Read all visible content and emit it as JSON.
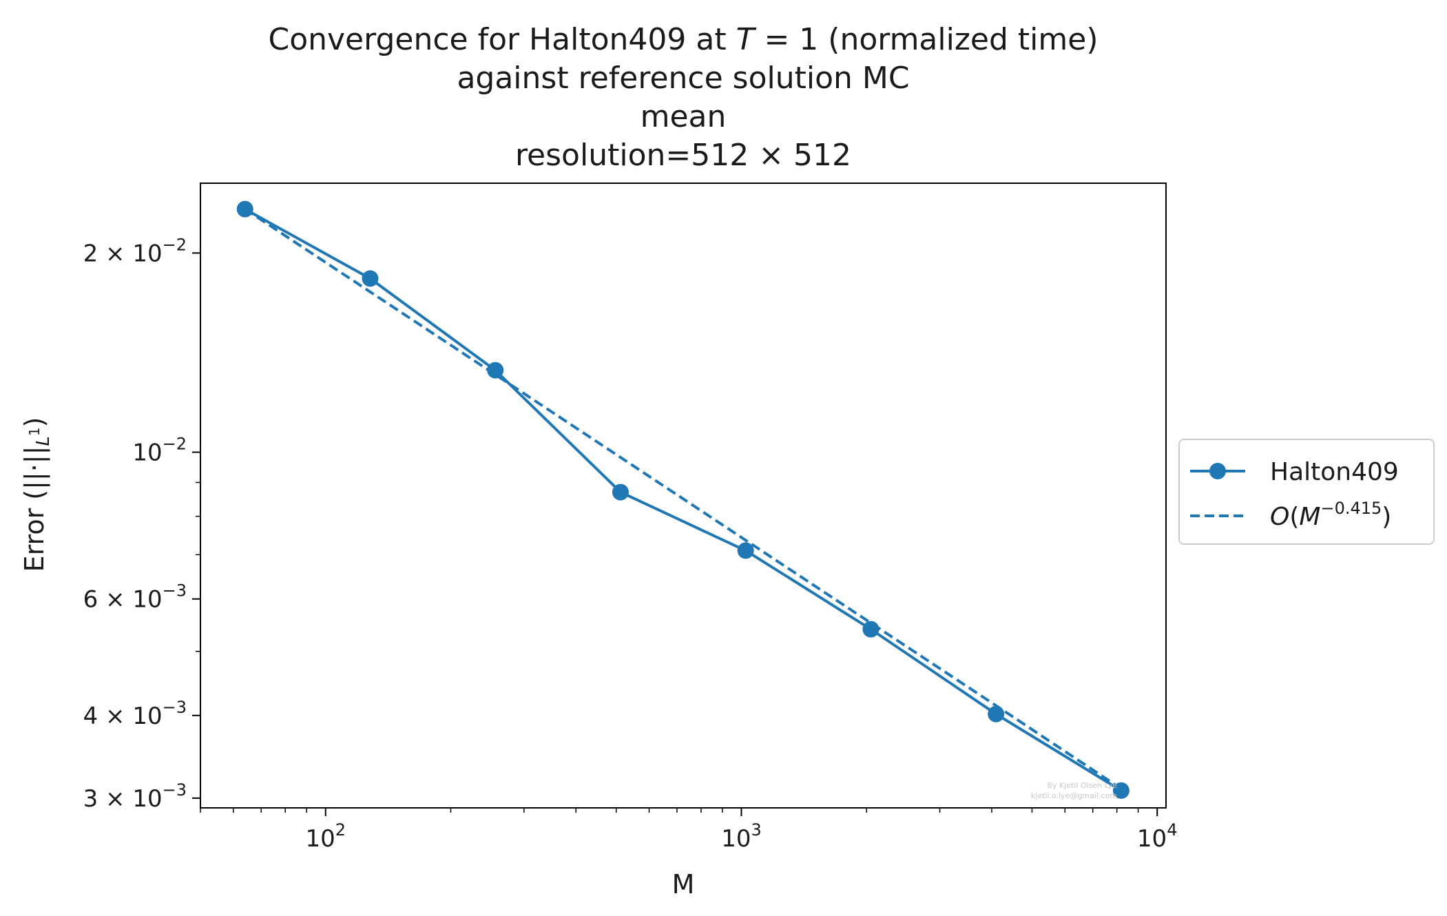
{
  "chart_data": {
    "type": "line",
    "title_lines": [
      "Convergence for Halton409 at T = 1 (normalized time)",
      "against reference solution MC",
      "mean",
      "resolution=512 × 512"
    ],
    "xlabel": "M",
    "ylabel": "Error (||·||L¹)",
    "xscale": "log",
    "yscale": "log",
    "xlim": [
      50,
      10500
    ],
    "ylim": [
      0.0029,
      0.0255
    ],
    "xticks": [
      {
        "value": 100,
        "base": "10",
        "exp": "2"
      },
      {
        "value": 1000,
        "base": "10",
        "exp": "3"
      },
      {
        "value": 10000,
        "base": "10",
        "exp": "4"
      }
    ],
    "yticks": [
      {
        "value": 0.003,
        "mant": "3 × 10",
        "exp": "−3"
      },
      {
        "value": 0.004,
        "mant": "4 × 10",
        "exp": "−3"
      },
      {
        "value": 0.006,
        "mant": "6 × 10",
        "exp": "−3"
      },
      {
        "value": 0.01,
        "mant": "10",
        "exp": "−2"
      },
      {
        "value": 0.02,
        "mant": "2 × 10",
        "exp": "−2"
      }
    ],
    "grid": false,
    "legend_position": "outside-right",
    "series": [
      {
        "name": "Halton409",
        "style": "solid-marker",
        "color": "#1f77b4",
        "x": [
          64,
          128,
          256,
          512,
          1024,
          2048,
          4096,
          8192
        ],
        "y": [
          0.0233,
          0.0183,
          0.0133,
          0.0087,
          0.0071,
          0.0054,
          0.00402,
          0.00308
        ]
      },
      {
        "name": "O(M^−0.415)",
        "style": "dashed",
        "color": "#1f77b4",
        "x": [
          64,
          128,
          256,
          512,
          1024,
          2048,
          4096,
          8192
        ],
        "y": [
          0.0233,
          0.01747,
          0.0131,
          0.00982,
          0.00736,
          0.00552,
          0.00414,
          0.0031
        ]
      }
    ],
    "legend": {
      "halton_label": "Halton409",
      "fit_label": "O(M^−0.415)"
    },
    "watermark": [
      "By Kjetil Olsen Lye",
      "kjetil.o.lye@gmail.com"
    ]
  }
}
